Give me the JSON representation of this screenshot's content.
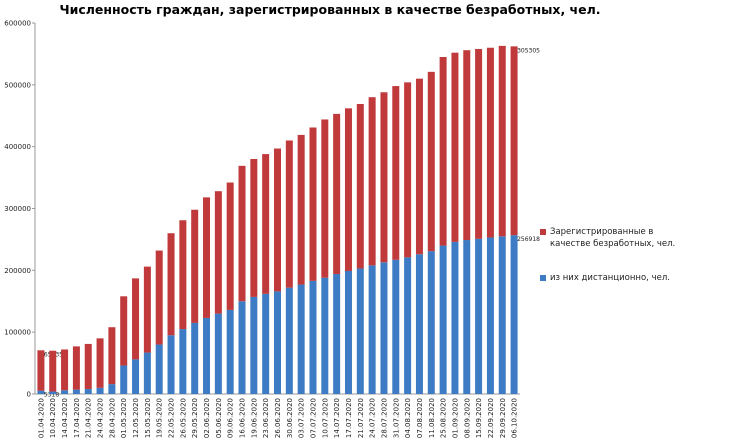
{
  "chart_data": {
    "type": "stacked_bar",
    "title": "Численность граждан, зарегистрированных в качестве безработных, чел.",
    "categories": [
      "01.04.2020",
      "10.04.2020",
      "14.04.2020",
      "17.04.2020",
      "21.04.2020",
      "24.04.2020",
      "28.04.2020",
      "01.05.2020",
      "12.05.2020",
      "15.05.2020",
      "19.05.2020",
      "22.05.2020",
      "26.05.2020",
      "29.05.2020",
      "02.06.2020",
      "05.06.2020",
      "09.06.2020",
      "16.06.2020",
      "19.06.2020",
      "23.06.2020",
      "26.06.2020",
      "30.06.2020",
      "03.07.2020",
      "07.07.2020",
      "10.07.2020",
      "14.07.2020",
      "17.07.2020",
      "21.07.2020",
      "24.07.2020",
      "28.07.2020",
      "31.07.2020",
      "04.08.2020",
      "07.08.2020",
      "11.08.2020",
      "25.08.2020",
      "01.09.2020",
      "08.09.2020",
      "15.09.2020",
      "22.09.2020",
      "29.09.2020",
      "06.10.2020"
    ],
    "series": [
      {
        "name": "Зарегистрированные в качестве безработных, чел.",
        "color": "#c0393b",
        "values": [
          65335,
          66000,
          66000,
          70000,
          73000,
          80000,
          92000,
          112000,
          131000,
          139000,
          152000,
          165000,
          176000,
          183000,
          195000,
          198000,
          206000,
          219000,
          223000,
          226000,
          231000,
          238000,
          242000,
          248000,
          256000,
          259000,
          263000,
          266000,
          272000,
          275000,
          281000,
          283000,
          284000,
          290000,
          305000,
          306000,
          307000,
          307000,
          307000,
          308000,
          305305
        ],
        "value_labels": [
          "65335",
          null,
          null,
          null,
          null,
          null,
          null,
          null,
          null,
          null,
          null,
          null,
          null,
          null,
          null,
          null,
          null,
          null,
          null,
          null,
          null,
          null,
          null,
          null,
          null,
          null,
          null,
          null,
          null,
          null,
          null,
          null,
          null,
          null,
          null,
          null,
          null,
          null,
          null,
          null,
          "305305"
        ]
      },
      {
        "name": "из них дистанционно, чел.",
        "color": "#3d7cc4",
        "values": [
          5318,
          4000,
          6000,
          7000,
          8000,
          10000,
          16000,
          46000,
          56000,
          67000,
          80000,
          95000,
          105000,
          115000,
          123000,
          130000,
          136000,
          150000,
          157000,
          162000,
          166000,
          172000,
          177000,
          183000,
          188000,
          194000,
          199000,
          203000,
          208000,
          213000,
          217000,
          221000,
          226000,
          231000,
          240000,
          246000,
          249000,
          251000,
          253000,
          255000,
          256918
        ],
        "value_labels": [
          "5318",
          null,
          null,
          null,
          null,
          null,
          null,
          null,
          null,
          null,
          null,
          null,
          null,
          null,
          null,
          null,
          null,
          null,
          null,
          null,
          null,
          null,
          null,
          null,
          null,
          null,
          null,
          null,
          null,
          null,
          null,
          null,
          null,
          null,
          null,
          null,
          null,
          null,
          null,
          null,
          "256918"
        ]
      }
    ],
    "ylim": [
      0,
      600000
    ],
    "yticks": [
      0,
      100000,
      200000,
      300000,
      400000,
      500000,
      600000
    ],
    "grid": false
  }
}
